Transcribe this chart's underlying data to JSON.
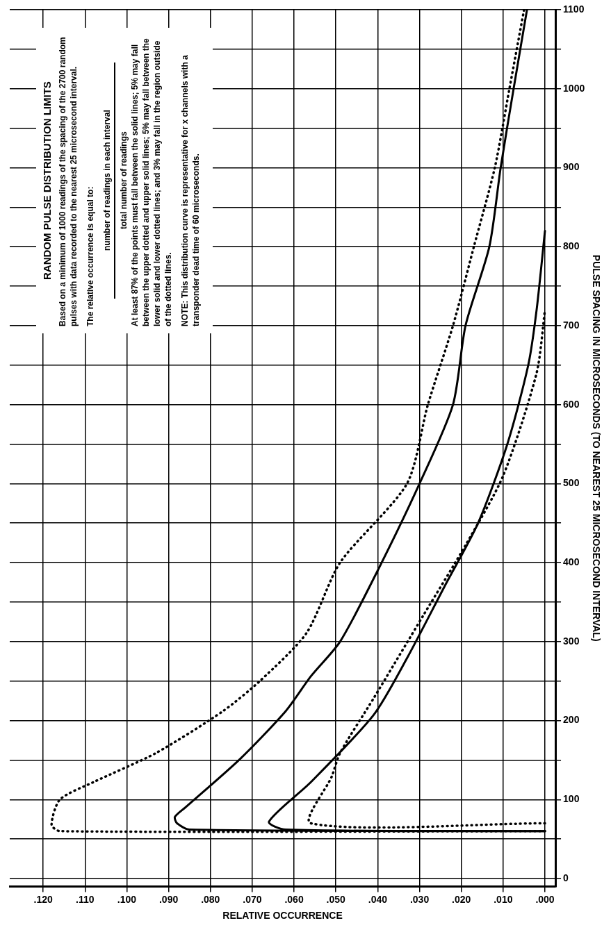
{
  "chart_data": {
    "type": "line",
    "title": "RANDOM PULSE DISTRIBUTION LIMITS",
    "xlabel": "RELATIVE OCCURRENCE",
    "ylabel": "PULSE SPACING IN MICROSECONDS (TO NEAREST 25 MICROSECOND INTERVAL)",
    "annotations": [
      "Based on a minimum of 1000 readings of the spacing of the 2700 random pulses with data recorded to the nearest 25 microsecond interval.",
      "The relative occurrence is equal to:",
      "number of readings in each interval",
      "total number of readings",
      "At least 87% of the points must fall between the solid lines; 5% may fall between the upper dotted and upper solid lines; 5% may fall between the lower solid and lower dotted lines; and 3% may fall in the region outside of the dotted lines.",
      "NOTE:  This distribution curve is representative for x channels with a transponder dead time of 60 microseconds."
    ],
    "xlim": [
      0.128,
      -0.0025
    ],
    "ylim": [
      -10,
      1100
    ],
    "xticks": [
      {
        "value": 0.12,
        "label": ".120"
      },
      {
        "value": 0.11,
        "label": ".110"
      },
      {
        "value": 0.1,
        "label": ".100"
      },
      {
        "value": 0.09,
        "label": ".090"
      },
      {
        "value": 0.08,
        "label": ".080"
      },
      {
        "value": 0.07,
        "label": ".070"
      },
      {
        "value": 0.06,
        "label": ".060"
      },
      {
        "value": 0.05,
        "label": ".050"
      },
      {
        "value": 0.04,
        "label": ".040"
      },
      {
        "value": 0.03,
        "label": ".030"
      },
      {
        "value": 0.02,
        "label": ".020"
      },
      {
        "value": 0.01,
        "label": ".010"
      },
      {
        "value": 0,
        "label": ".000"
      }
    ],
    "yticks": [
      0,
      {
        "value": 50,
        "label": null
      },
      100,
      {
        "value": 150,
        "label": null
      },
      200,
      {
        "value": 250,
        "label": null
      },
      300,
      {
        "value": 350,
        "label": null
      },
      400,
      {
        "value": 450,
        "label": null
      },
      500,
      {
        "value": 550,
        "label": null
      },
      600,
      {
        "value": 650,
        "label": null
      },
      700,
      {
        "value": 750,
        "label": null
      },
      800,
      {
        "value": 850,
        "label": null
      },
      900,
      {
        "value": 950,
        "label": null
      },
      1000,
      {
        "value": 1050,
        "label": null
      },
      1100
    ],
    "grid": true,
    "legend": false,
    "marker": "none",
    "series": [
      {
        "color": "#000000",
        "line_style": "dotted",
        "x": [
          0,
          0.116,
          0.118,
          0.116,
          0.108,
          0.093,
          0.077,
          0.068,
          0.057,
          0.049,
          0.033,
          0.028,
          0.022,
          0.017,
          0.012,
          0.0085,
          0.005
        ],
        "values": [
          60,
          60,
          68,
          100,
          122,
          159,
          212,
          251,
          311,
          400,
          500,
          600,
          700,
          800,
          900,
          1000,
          1100
        ]
      },
      {
        "color": "#000000",
        "line_style": "solid",
        "x": [
          0,
          0.085,
          0.088,
          0.0885,
          0.086,
          0.073,
          0.062,
          0.056,
          0.049,
          0.04,
          0.03,
          0.022,
          0.019,
          0.0133,
          0.0106,
          0.0075,
          0.0043
        ],
        "values": [
          60,
          62,
          70,
          78,
          90,
          151,
          212,
          256,
          300,
          390,
          500,
          600,
          700,
          800,
          900,
          1000,
          1100
        ]
      },
      {
        "color": "#000000",
        "line_style": "solid",
        "x": [
          0,
          0.062,
          0.066,
          0.056,
          0.041,
          0.033,
          0.024,
          0.016,
          0.009,
          0.004,
          0.002,
          0
        ],
        "values": [
          60,
          62,
          72,
          122,
          207,
          279,
          370,
          450,
          550,
          650,
          720,
          820
        ]
      },
      {
        "color": "#000000",
        "line_style": "dotted",
        "x": [
          0,
          0.056,
          0.051,
          0.049,
          0.041,
          0.029,
          0.019,
          0.01,
          0.002,
          0
        ],
        "values": [
          70,
          70,
          129,
          159,
          228,
          334,
          422,
          510,
          640,
          720
        ]
      }
    ]
  }
}
